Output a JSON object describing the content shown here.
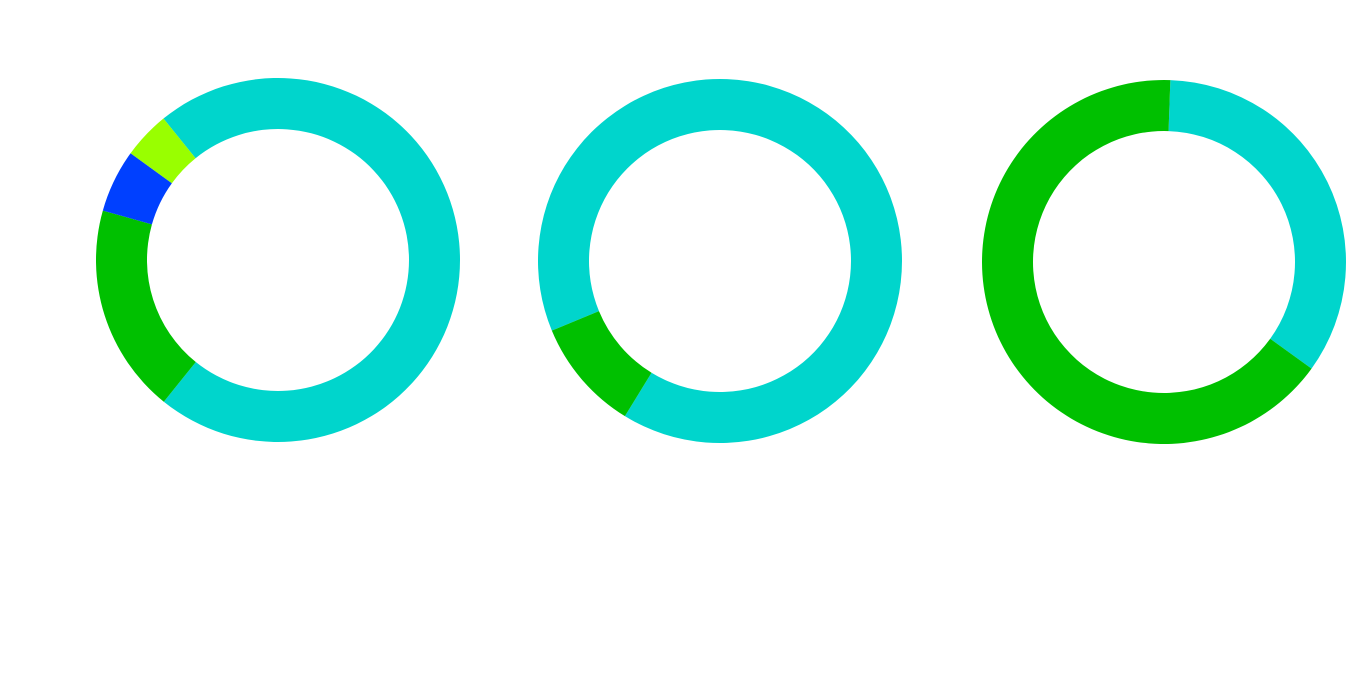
{
  "chart_data": [
    {
      "type": "donut",
      "values": [
        71.7,
        18.6,
        5.6,
        4.2
      ],
      "colors": [
        "#00d5cc",
        "#00c000",
        "#0040ff",
        "#99ff00"
      ]
    },
    {
      "type": "donut",
      "values": [
        90,
        10
      ],
      "colors": [
        "#00d5cc",
        "#00c000"
      ]
    },
    {
      "type": "donut",
      "values": [
        34.4,
        65.6
      ],
      "colors": [
        "#00d5cc",
        "#00c000"
      ]
    }
  ]
}
